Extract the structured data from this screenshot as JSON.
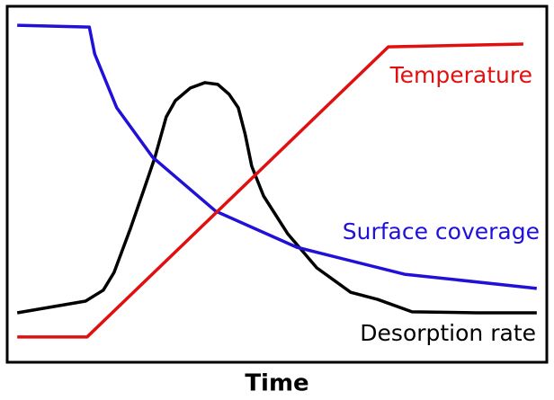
{
  "chart_data": {
    "type": "line",
    "xlabel": "Time",
    "xlim": [
      0,
      100
    ],
    "ylim": [
      0,
      100
    ],
    "grid": false,
    "series": [
      {
        "name": "Temperature",
        "color": "#e01010",
        "x": [
          1.7,
          14.7,
          70.7,
          95.8
        ],
        "values": [
          6.9,
          6.9,
          88.8,
          89.6
        ]
      },
      {
        "name": "Surface coverage",
        "color": "#2010d8",
        "x": [
          1.7,
          15.1,
          16.1,
          20.2,
          26.9,
          38.6,
          53.7,
          73.7,
          98.3
        ],
        "values": [
          94.9,
          94.4,
          86.8,
          71.6,
          57.6,
          42.4,
          32.2,
          24.6,
          20.6
        ]
      },
      {
        "name": "Desorption rate",
        "color": "#000000",
        "x": [
          1.7,
          14.4,
          17.7,
          19.7,
          22.7,
          25.3,
          27.3,
          29.4,
          31.1,
          33.9,
          36.6,
          39.0,
          41.1,
          42.8,
          44.1,
          45.3,
          47.5,
          52.0,
          57.4,
          63.7,
          68.7,
          75.1,
          87.1,
          98.3
        ],
        "values": [
          13.7,
          17.0,
          20.1,
          25.1,
          37.3,
          48.7,
          57.6,
          69.0,
          73.6,
          77.2,
          78.7,
          78.2,
          75.4,
          71.6,
          64.0,
          55.1,
          46.7,
          36.0,
          26.4,
          19.5,
          17.5,
          14.0,
          13.7,
          13.7
        ]
      }
    ]
  }
}
